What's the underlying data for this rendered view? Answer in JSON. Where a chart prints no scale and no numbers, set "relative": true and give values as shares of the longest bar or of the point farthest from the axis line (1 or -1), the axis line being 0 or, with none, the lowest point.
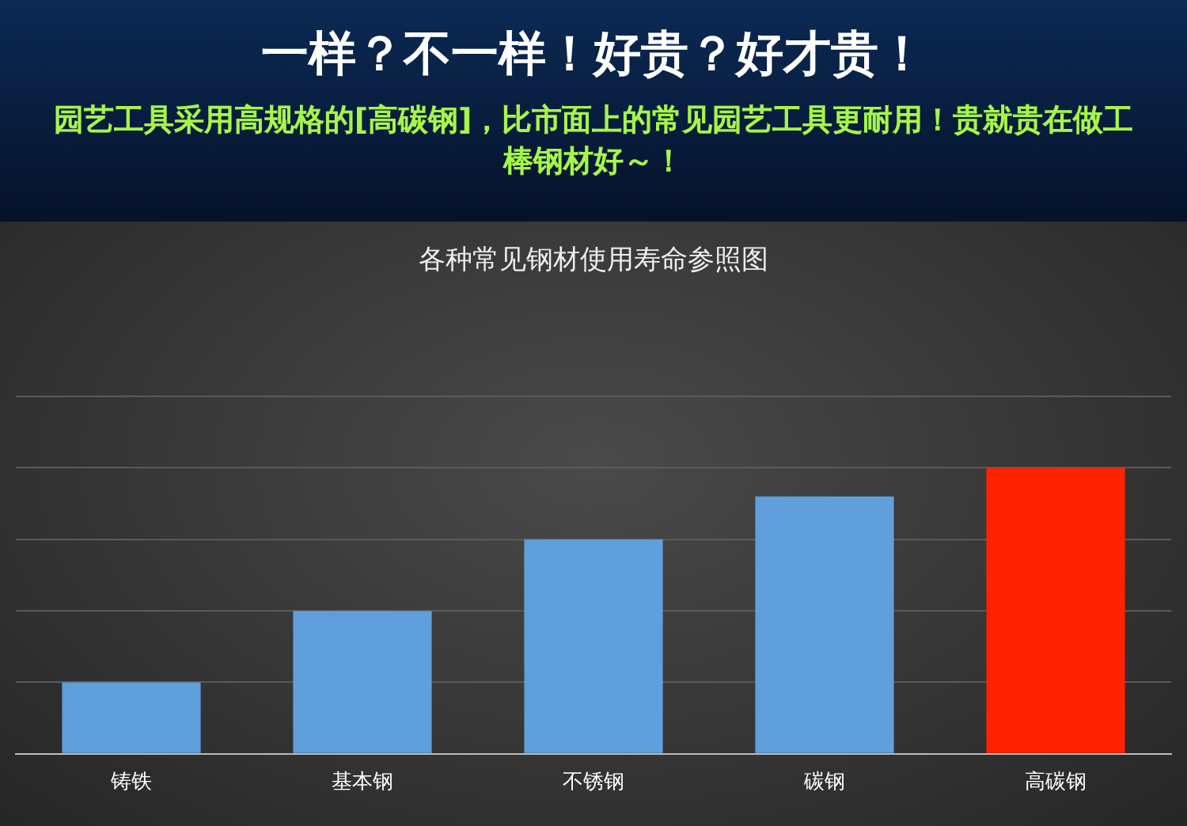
{
  "chart_data": {
    "type": "bar",
    "title": "各种常见钢材使用寿命参照图",
    "annotations": [
      "一样？不一样！好贵？好才贵！",
      "园艺工具采用高规格的[高碳钢]，比市面上的常见园艺工具更耐用！贵就贵在做工棒钢材好～！"
    ],
    "categories": [
      "铸铁",
      "基本钢",
      "不锈钢",
      "碳钢",
      "高碳钢"
    ],
    "values": [
      0.25,
      0.5,
      0.75,
      0.9,
      1
    ],
    "colors": [
      "#5f9fdc",
      "#5f9fdc",
      "#5f9fdc",
      "#5f9fdc",
      "#ff2200"
    ],
    "relative": true,
    "grid": "y",
    "legend": false
  }
}
